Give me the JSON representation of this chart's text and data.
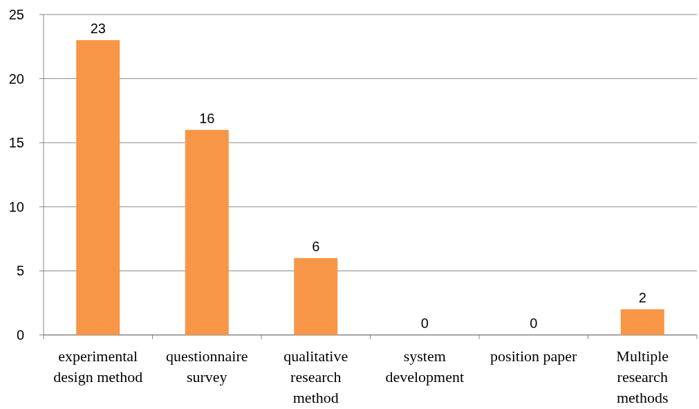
{
  "chart_data": {
    "type": "bar",
    "categories": [
      "experimental design method",
      "questionnaire survey",
      "qualitative research method",
      "system development",
      "position paper",
      "Multiple research methods"
    ],
    "values": [
      23,
      16,
      6,
      0,
      0,
      2
    ],
    "color": "#f79646",
    "ylim": [
      0,
      25
    ],
    "yticks": [
      0,
      5,
      10,
      15,
      20,
      25
    ],
    "grid": "y",
    "data_labels": true
  }
}
